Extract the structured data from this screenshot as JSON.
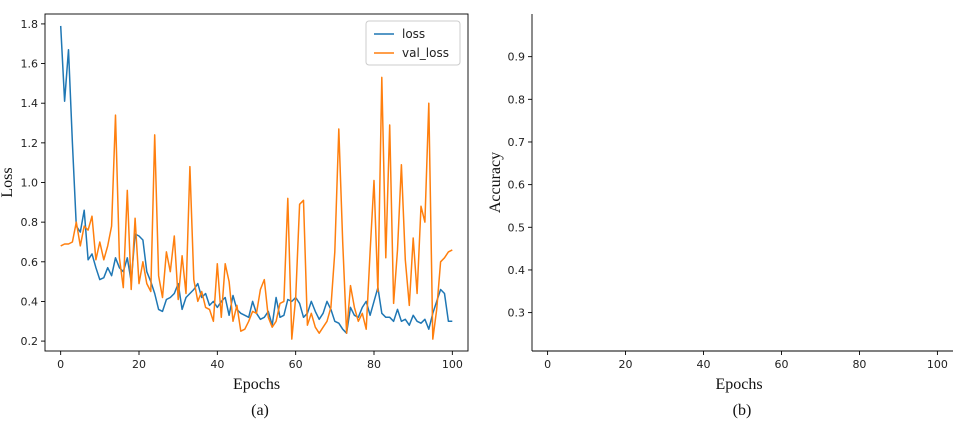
{
  "chart_data": [
    {
      "type": "line",
      "caption": "(a)",
      "xlabel": "Epochs",
      "ylabel": "Loss",
      "xlim": [
        -4,
        104
      ],
      "ylim": [
        0.15,
        1.85
      ],
      "xticks": [
        0,
        20,
        40,
        60,
        80,
        100
      ],
      "yticks": [
        0.2,
        0.4,
        0.6,
        0.8,
        1.0,
        1.2,
        1.4,
        1.6,
        1.8
      ],
      "ytick_labels": [
        "0.2",
        "0.4",
        "0.6",
        "0.8",
        "1.0",
        "1.2",
        "1.4",
        "1.6",
        "1.8"
      ],
      "legend": {
        "position": "top-right",
        "entries": [
          "loss",
          "val_loss"
        ]
      },
      "series": [
        {
          "name": "loss",
          "color": "#1f77b4",
          "values": [
            1.79,
            1.41,
            1.67,
            1.2,
            0.78,
            0.75,
            0.86,
            0.61,
            0.64,
            0.57,
            0.51,
            0.52,
            0.57,
            0.53,
            0.62,
            0.57,
            0.55,
            0.62,
            0.5,
            0.74,
            0.73,
            0.71,
            0.55,
            0.5,
            0.44,
            0.36,
            0.35,
            0.41,
            0.42,
            0.44,
            0.49,
            0.36,
            0.42,
            0.44,
            0.46,
            0.49,
            0.42,
            0.44,
            0.38,
            0.4,
            0.37,
            0.4,
            0.42,
            0.33,
            0.43,
            0.36,
            0.34,
            0.33,
            0.32,
            0.4,
            0.34,
            0.31,
            0.32,
            0.35,
            0.28,
            0.42,
            0.32,
            0.33,
            0.41,
            0.4,
            0.42,
            0.39,
            0.32,
            0.34,
            0.4,
            0.35,
            0.31,
            0.34,
            0.4,
            0.36,
            0.3,
            0.29,
            0.26,
            0.24,
            0.37,
            0.33,
            0.32,
            0.37,
            0.4,
            0.33,
            0.4,
            0.47,
            0.34,
            0.32,
            0.32,
            0.3,
            0.36,
            0.3,
            0.31,
            0.28,
            0.33,
            0.3,
            0.29,
            0.31,
            0.26,
            0.34,
            0.4,
            0.46,
            0.44,
            0.3,
            0.3
          ]
        },
        {
          "name": "val_loss",
          "color": "#ff7f0e",
          "values": [
            0.68,
            0.69,
            0.69,
            0.7,
            0.8,
            0.68,
            0.78,
            0.76,
            0.83,
            0.61,
            0.7,
            0.61,
            0.68,
            0.78,
            1.34,
            0.62,
            0.47,
            0.96,
            0.46,
            0.82,
            0.49,
            0.6,
            0.49,
            0.45,
            1.24,
            0.53,
            0.42,
            0.65,
            0.55,
            0.73,
            0.41,
            0.63,
            0.44,
            1.08,
            0.51,
            0.4,
            0.45,
            0.37,
            0.36,
            0.3,
            0.59,
            0.32,
            0.59,
            0.5,
            0.3,
            0.38,
            0.25,
            0.26,
            0.3,
            0.35,
            0.34,
            0.46,
            0.51,
            0.32,
            0.27,
            0.3,
            0.39,
            0.4,
            0.92,
            0.21,
            0.42,
            0.89,
            0.91,
            0.28,
            0.34,
            0.27,
            0.24,
            0.27,
            0.3,
            0.37,
            0.65,
            1.27,
            0.7,
            0.24,
            0.48,
            0.37,
            0.3,
            0.34,
            0.26,
            0.65,
            1.01,
            0.45,
            1.53,
            0.62,
            1.29,
            0.39,
            0.66,
            1.09,
            0.61,
            0.38,
            0.72,
            0.44,
            0.88,
            0.8,
            1.4,
            0.21,
            0.36,
            0.6,
            0.62,
            0.65,
            0.66
          ]
        }
      ]
    },
    {
      "type": "line",
      "caption": "(b)",
      "xlabel": "Epochs",
      "ylabel": "Accuracy",
      "xlim": [
        -4,
        104
      ],
      "ylim": [
        0.21,
        1.0
      ],
      "xticks": [
        0,
        20,
        40,
        60,
        80,
        100
      ],
      "yticks": [
        0.3,
        0.4,
        0.5,
        0.6,
        0.7,
        0.8,
        0.9
      ],
      "ytick_labels": [
        "0.3",
        "0.4",
        "0.5",
        "0.6",
        "0.7",
        "0.8",
        "0.9"
      ],
      "series": []
    }
  ]
}
